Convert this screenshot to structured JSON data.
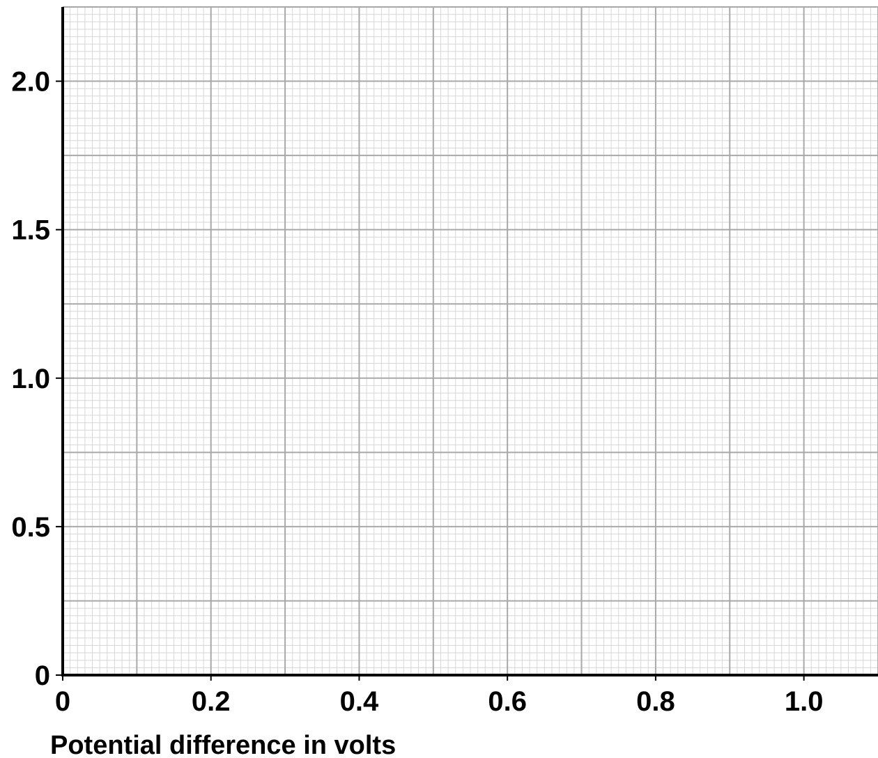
{
  "chart_data": {
    "type": "line",
    "title": "",
    "xlabel": "Potential difference in volts",
    "ylabel": "",
    "xlim": [
      0,
      1.1
    ],
    "ylim": [
      0,
      2.25
    ],
    "x_ticks": [
      {
        "value": 0,
        "label": "0"
      },
      {
        "value": 0.2,
        "label": "0.2"
      },
      {
        "value": 0.4,
        "label": "0.4"
      },
      {
        "value": 0.6,
        "label": "0.6"
      },
      {
        "value": 0.8,
        "label": "0.8"
      },
      {
        "value": 1.0,
        "label": "1.0"
      }
    ],
    "y_ticks": [
      {
        "value": 0,
        "label": "0"
      },
      {
        "value": 0.5,
        "label": "0.5"
      },
      {
        "value": 1.0,
        "label": "1.0"
      },
      {
        "value": 1.5,
        "label": "1.5"
      },
      {
        "value": 2.0,
        "label": "2.0"
      }
    ],
    "grid": true,
    "grid_major_x_step": 0.1,
    "grid_major_y_step": 0.25,
    "grid_minor_x_step": 0.01,
    "grid_minor_y_step": 0.025,
    "series": [],
    "colors": {
      "axis": "#000000",
      "grid_major": "#a8a8a8",
      "grid_minor": "#d6d6d6"
    }
  }
}
